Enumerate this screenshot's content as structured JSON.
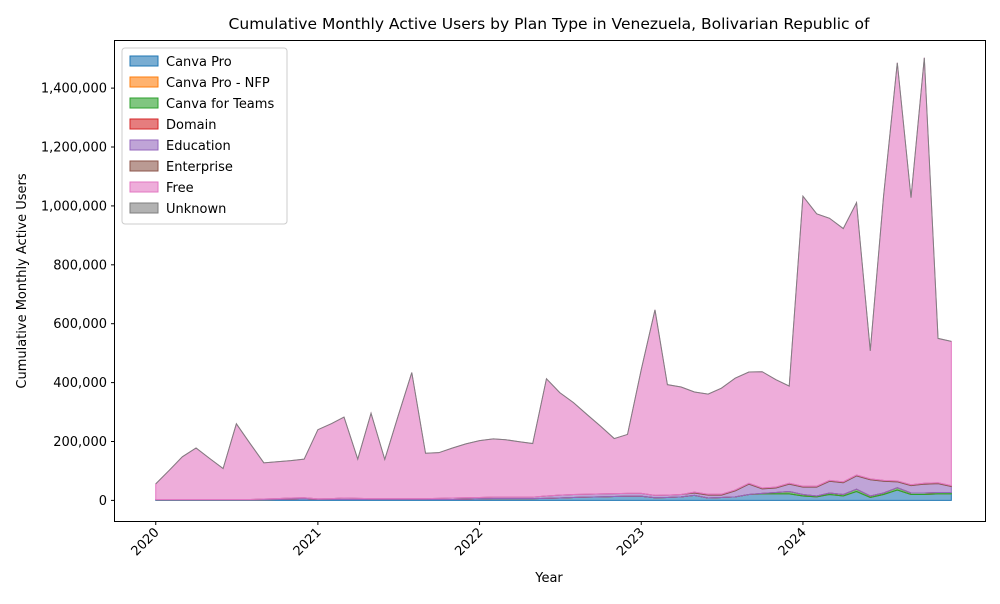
{
  "chart_data": {
    "type": "area",
    "stacked": true,
    "title": "Cumulative Monthly Active Users by Plan Type in Venezuela, Bolivarian Republic of",
    "xlabel": "Year",
    "ylabel": "Cumulative Monthly Active Users",
    "x_tick_labels": [
      "2020",
      "2021",
      "2022",
      "2023",
      "2024"
    ],
    "y_tick_labels": [
      "0",
      "200,000",
      "400,000",
      "600,000",
      "800,000",
      "1,000,000",
      "1,200,000",
      "1,400,000"
    ],
    "ylim": [
      -70000,
      1560000
    ],
    "xlim": [
      "2019-10-01",
      "2025-02-15"
    ],
    "grid": false,
    "legend_position": "upper left",
    "x": [
      "2020-01",
      "2020-02",
      "2020-03",
      "2020-04",
      "2020-05",
      "2020-06",
      "2020-07",
      "2020-08",
      "2020-09",
      "2020-10",
      "2020-11",
      "2020-12",
      "2021-01",
      "2021-02",
      "2021-03",
      "2021-04",
      "2021-05",
      "2021-06",
      "2021-07",
      "2021-08",
      "2021-09",
      "2021-10",
      "2021-11",
      "2021-12",
      "2022-01",
      "2022-02",
      "2022-03",
      "2022-04",
      "2022-05",
      "2022-06",
      "2022-07",
      "2022-08",
      "2022-09",
      "2022-10",
      "2022-11",
      "2022-12",
      "2023-01",
      "2023-02",
      "2023-03",
      "2023-04",
      "2023-05",
      "2023-06",
      "2023-07",
      "2023-08",
      "2023-09",
      "2023-10",
      "2023-11",
      "2023-12",
      "2024-01",
      "2024-02",
      "2024-03",
      "2024-04",
      "2024-05",
      "2024-06",
      "2024-07",
      "2024-08",
      "2024-09",
      "2024-10",
      "2024-11",
      "2024-12"
    ],
    "series": [
      {
        "name": "Canva Pro",
        "color": "#1f77b4",
        "values": [
          2000,
          2000,
          2000,
          2000,
          2000,
          2000,
          2000,
          2000,
          2500,
          3000,
          4000,
          5000,
          3000,
          3000,
          3000,
          3000,
          3000,
          3000,
          3000,
          3000,
          3000,
          3000,
          3000,
          4000,
          5000,
          6000,
          6000,
          6000,
          6000,
          7000,
          8000,
          10000,
          11000,
          12000,
          13000,
          14000,
          14000,
          9000,
          10000,
          12000,
          17000,
          8000,
          10000,
          12000,
          20000,
          22000,
          22000,
          22000,
          15000,
          12000,
          20000,
          15000,
          30000,
          10000,
          20000,
          35000,
          20000,
          20000,
          22000,
          22000
        ]
      },
      {
        "name": "Canva Pro - NFP",
        "color": "#ff7f0e",
        "values": [
          0,
          0,
          0,
          0,
          0,
          0,
          0,
          0,
          0,
          0,
          0,
          0,
          0,
          0,
          0,
          0,
          0,
          0,
          0,
          0,
          0,
          0,
          0,
          0,
          0,
          0,
          0,
          0,
          0,
          0,
          0,
          0,
          0,
          0,
          0,
          0,
          0,
          0,
          0,
          0,
          0,
          0,
          0,
          0,
          0,
          0,
          0,
          0,
          0,
          0,
          0,
          0,
          0,
          0,
          0,
          0,
          0,
          0,
          0,
          0
        ]
      },
      {
        "name": "Canva for Teams",
        "color": "#2ca02c",
        "values": [
          0,
          0,
          0,
          0,
          0,
          0,
          0,
          0,
          0,
          0,
          0,
          0,
          0,
          0,
          0,
          0,
          0,
          0,
          0,
          0,
          0,
          0,
          0,
          0,
          0,
          0,
          0,
          0,
          0,
          0,
          0,
          0,
          0,
          0,
          0,
          0,
          0,
          0,
          0,
          0,
          0,
          0,
          0,
          0,
          0,
          2000,
          5000,
          8000,
          5000,
          3000,
          5000,
          5000,
          8000,
          5000,
          5000,
          8000,
          5000,
          5000,
          5000,
          5000
        ]
      },
      {
        "name": "Domain",
        "color": "#d62728",
        "values": [
          0,
          0,
          0,
          0,
          0,
          0,
          0,
          0,
          0,
          0,
          0,
          0,
          0,
          0,
          0,
          0,
          0,
          0,
          0,
          0,
          0,
          0,
          0,
          0,
          0,
          0,
          0,
          0,
          0,
          0,
          0,
          0,
          0,
          0,
          0,
          0,
          0,
          0,
          0,
          0,
          0,
          0,
          0,
          0,
          0,
          0,
          0,
          0,
          0,
          0,
          0,
          0,
          0,
          0,
          0,
          0,
          0,
          0,
          0,
          0
        ]
      },
      {
        "name": "Education",
        "color": "#9467bd",
        "values": [
          1000,
          1000,
          1000,
          1000,
          1000,
          1000,
          1000,
          1000,
          2000,
          3000,
          4000,
          4000,
          2000,
          3000,
          5000,
          4000,
          3000,
          3000,
          3000,
          3000,
          3000,
          4000,
          5000,
          5000,
          5000,
          5000,
          5000,
          5000,
          5000,
          8000,
          10000,
          10000,
          10000,
          10000,
          10000,
          10000,
          10000,
          8000,
          8000,
          8000,
          8000,
          10000,
          8000,
          20000,
          35000,
          15000,
          15000,
          25000,
          25000,
          30000,
          40000,
          40000,
          45000,
          55000,
          40000,
          20000,
          25000,
          30000,
          30000,
          20000
        ]
      },
      {
        "name": "Enterprise",
        "color": "#8c564b",
        "values": [
          0,
          0,
          0,
          0,
          0,
          0,
          0,
          0,
          0,
          0,
          0,
          0,
          0,
          0,
          0,
          0,
          0,
          0,
          0,
          0,
          0,
          0,
          0,
          0,
          0,
          0,
          0,
          0,
          0,
          0,
          0,
          0,
          0,
          0,
          0,
          0,
          0,
          0,
          0,
          0,
          3000,
          3000,
          3000,
          3000,
          3000,
          3000,
          3000,
          3000,
          3000,
          3000,
          3000,
          3000,
          3000,
          3000,
          3000,
          3000,
          3000,
          3000,
          3000,
          3000
        ]
      },
      {
        "name": "Free",
        "color": "#e377c2",
        "values": [
          53000,
          100000,
          145000,
          175000,
          140000,
          105000,
          257000,
          190000,
          123000,
          125000,
          127000,
          131000,
          235000,
          255000,
          275000,
          133000,
          290000,
          133000,
          280000,
          428000,
          154000,
          155000,
          170000,
          183000,
          193000,
          198000,
          195000,
          188000,
          182000,
          398000,
          348000,
          312000,
          270000,
          230000,
          187000,
          200000,
          420000,
          630000,
          375000,
          365000,
          340000,
          340000,
          360000,
          380000,
          378000,
          395000,
          365000,
          330000,
          985000,
          925000,
          890000,
          860000,
          925000,
          435000,
          965000,
          1420000,
          975000,
          1445000,
          490000,
          490000
        ]
      },
      {
        "name": "Unknown",
        "color": "#7f7f7f",
        "values": [
          0,
          0,
          0,
          0,
          0,
          0,
          0,
          0,
          0,
          0,
          0,
          0,
          0,
          0,
          0,
          0,
          0,
          0,
          0,
          0,
          0,
          0,
          0,
          0,
          0,
          0,
          0,
          0,
          0,
          0,
          0,
          0,
          0,
          0,
          0,
          0,
          0,
          0,
          0,
          0,
          0,
          0,
          0,
          0,
          0,
          0,
          0,
          0,
          0,
          0,
          0,
          0,
          0,
          0,
          0,
          0,
          0,
          0,
          0,
          0
        ]
      }
    ]
  }
}
